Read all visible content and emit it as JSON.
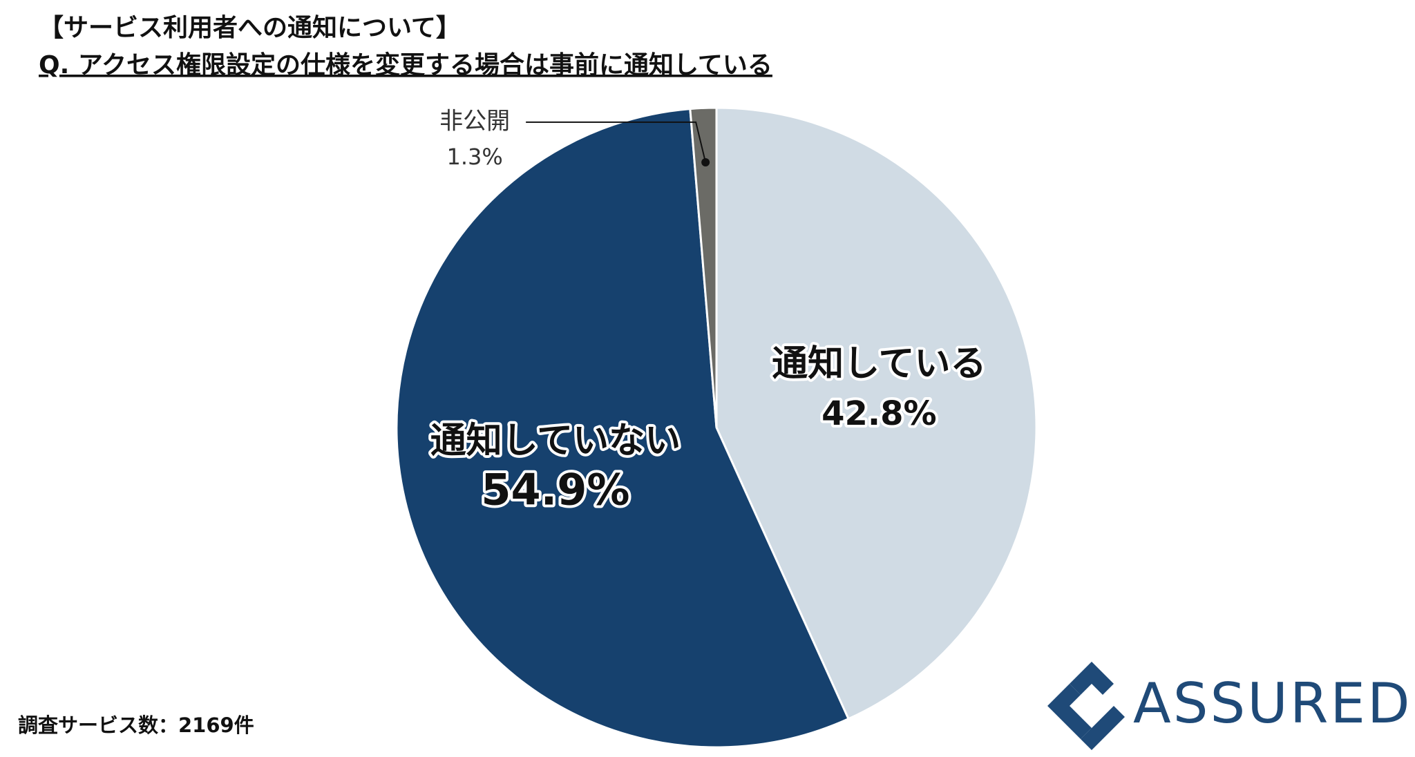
{
  "title": "【サービス利用者への通知について】",
  "chart_data": {
    "type": "pie",
    "title": "Q. アクセス権限設定の仕様を変更する場合は事前に通知している",
    "categories": [
      "通知している",
      "通知していない",
      "非公開"
    ],
    "values": [
      42.8,
      54.9,
      1.3
    ],
    "value_labels": [
      "42.8%",
      "54.9%",
      "1.3%"
    ],
    "colors": [
      "#d0dbe4",
      "#16416e",
      "#6b6b66"
    ]
  },
  "note": "調査サービス数：2169件",
  "brand": "ASSURED"
}
